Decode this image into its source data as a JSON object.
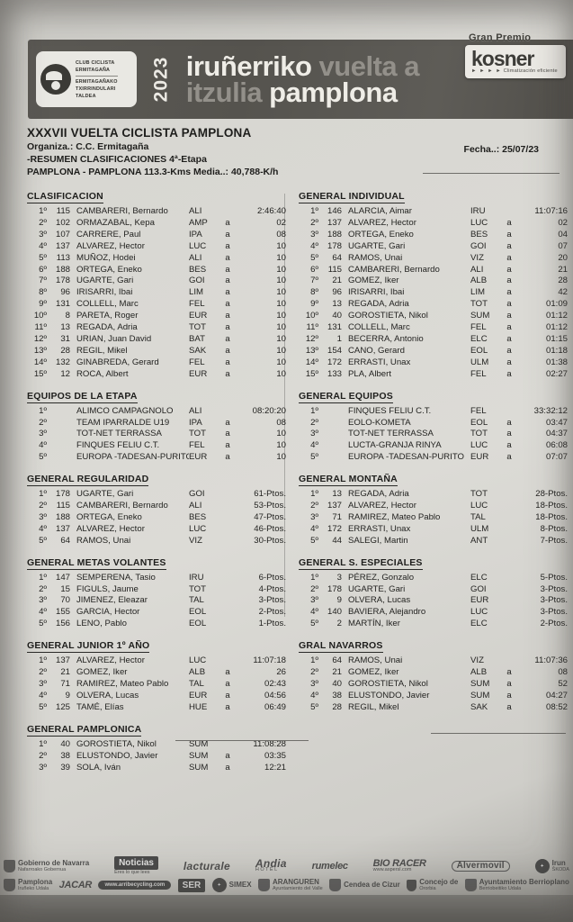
{
  "banner": {
    "club_lines": [
      "CLUB CICLISTA",
      "ERMITAGAÑA",
      "ERMITAGAÑAKO",
      "TXIRRINDULARI",
      "TALDEA"
    ],
    "year": "2023",
    "line1_white": "iruñerriko",
    "line1_gray": " vuelta a",
    "line2_gray": "itzulia",
    "line2_white": " pamplona",
    "gran_premio": "Gran Premio",
    "kosner": "kosner",
    "kosner_arrows": "► ► ► ►",
    "kosner_sub": "Climatización eficiente"
  },
  "title_block": {
    "title": "XXXVII VUELTA CICLISTA PAMPLONA",
    "organiza": "Organiza.: C.C. Ermitagaña",
    "resumen": "-RESUMEN CLASIFICACIONES 4ª-Etapa",
    "route": "PAMPLONA - PAMPLONA  113.3-Kms    Media..: 40,788-K/h",
    "fecha": "Fecha..: 25/07/23"
  },
  "sections": {
    "left": [
      {
        "title": "CLASIFICACION",
        "rows": [
          {
            "pos": "1º",
            "num": "115",
            "name": "CAMBARERI, Bernardo",
            "team": "ALI",
            "gap": "",
            "value": "2:46:40"
          },
          {
            "pos": "2º",
            "num": "102",
            "name": "ORMAZABAL, Kepa",
            "team": "AMP",
            "gap": "a",
            "value": "02"
          },
          {
            "pos": "3º",
            "num": "107",
            "name": "CARRERE, Paul",
            "team": "IPA",
            "gap": "a",
            "value": "08"
          },
          {
            "pos": "4º",
            "num": "137",
            "name": "ALVAREZ, Hector",
            "team": "LUC",
            "gap": "a",
            "value": "10"
          },
          {
            "pos": "5º",
            "num": "113",
            "name": "MUÑOZ, Hodei",
            "team": "ALI",
            "gap": "a",
            "value": "10"
          },
          {
            "pos": "6º",
            "num": "188",
            "name": "ORTEGA, Eneko",
            "team": "BES",
            "gap": "a",
            "value": "10"
          },
          {
            "pos": "7º",
            "num": "178",
            "name": "UGARTE, Gari",
            "team": "GOI",
            "gap": "a",
            "value": "10"
          },
          {
            "pos": "8º",
            "num": "96",
            "name": "IRISARRI, Ibai",
            "team": "LIM",
            "gap": "a",
            "value": "10"
          },
          {
            "pos": "9º",
            "num": "131",
            "name": "COLLELL, Marc",
            "team": "FEL",
            "gap": "a",
            "value": "10"
          },
          {
            "pos": "10º",
            "num": "8",
            "name": "PARETA, Roger",
            "team": "EUR",
            "gap": "a",
            "value": "10"
          },
          {
            "pos": "11º",
            "num": "13",
            "name": "REGADA, Adria",
            "team": "TOT",
            "gap": "a",
            "value": "10"
          },
          {
            "pos": "12º",
            "num": "31",
            "name": "URIAN, Juan David",
            "team": "BAT",
            "gap": "a",
            "value": "10"
          },
          {
            "pos": "13º",
            "num": "28",
            "name": "REGIL, Mikel",
            "team": "SAK",
            "gap": "a",
            "value": "10"
          },
          {
            "pos": "14º",
            "num": "132",
            "name": "GINABREDA, Gerard",
            "team": "FEL",
            "gap": "a",
            "value": "10"
          },
          {
            "pos": "15º",
            "num": "12",
            "name": "ROCA, Albert",
            "team": "EUR",
            "gap": "a",
            "value": "10"
          }
        ]
      },
      {
        "title": "EQUIPOS DE LA ETAPA",
        "rows": [
          {
            "pos": "1º",
            "num": "",
            "name": "ALIMCO CAMPAGNOLO",
            "team": "ALI",
            "gap": "",
            "value": "08:20:20"
          },
          {
            "pos": "2º",
            "num": "",
            "name": "TEAM IPARRALDE U19",
            "team": "IPA",
            "gap": "a",
            "value": "08"
          },
          {
            "pos": "3º",
            "num": "",
            "name": "TOT-NET TERRASSA",
            "team": "TOT",
            "gap": "a",
            "value": "10"
          },
          {
            "pos": "4º",
            "num": "",
            "name": "FINQUES FELIU C.T.",
            "team": "FEL",
            "gap": "a",
            "value": "10"
          },
          {
            "pos": "5º",
            "num": "",
            "name": "EUROPA -TADESAN-PURITO",
            "team": "EUR",
            "gap": "a",
            "value": "10"
          }
        ]
      },
      {
        "title": "GENERAL REGULARIDAD",
        "rows": [
          {
            "pos": "1º",
            "num": "178",
            "name": "UGARTE, Gari",
            "team": "GOI",
            "gap": "",
            "value": "61-Ptos."
          },
          {
            "pos": "2º",
            "num": "115",
            "name": "CAMBARERI, Bernardo",
            "team": "ALI",
            "gap": "",
            "value": "53-Ptos."
          },
          {
            "pos": "3º",
            "num": "188",
            "name": "ORTEGA, Eneko",
            "team": "BES",
            "gap": "",
            "value": "47-Ptos."
          },
          {
            "pos": "4º",
            "num": "137",
            "name": "ALVAREZ, Hector",
            "team": "LUC",
            "gap": "",
            "value": "46-Ptos."
          },
          {
            "pos": "5º",
            "num": "64",
            "name": "RAMOS, Unai",
            "team": "VIZ",
            "gap": "",
            "value": "30-Ptos."
          }
        ]
      },
      {
        "title": "GENERAL METAS VOLANTES",
        "rows": [
          {
            "pos": "1º",
            "num": "147",
            "name": "SEMPERENA, Tasio",
            "team": "IRU",
            "gap": "",
            "value": "6-Ptos."
          },
          {
            "pos": "2º",
            "num": "15",
            "name": "FIGULS, Jaume",
            "team": "TOT",
            "gap": "",
            "value": "4-Ptos."
          },
          {
            "pos": "3º",
            "num": "70",
            "name": "JIMENEZ, Eleazar",
            "team": "TAL",
            "gap": "",
            "value": "3-Ptos."
          },
          {
            "pos": "4º",
            "num": "155",
            "name": "GARCIA, Hector",
            "team": "EOL",
            "gap": "",
            "value": "2-Ptos."
          },
          {
            "pos": "5º",
            "num": "156",
            "name": "LENO, Pablo",
            "team": "EOL",
            "gap": "",
            "value": "1-Ptos."
          }
        ]
      },
      {
        "title": "GENERAL JUNIOR 1º AÑO",
        "rows": [
          {
            "pos": "1º",
            "num": "137",
            "name": "ALVAREZ, Hector",
            "team": "LUC",
            "gap": "",
            "value": "11:07:18"
          },
          {
            "pos": "2º",
            "num": "21",
            "name": "GOMEZ, Iker",
            "team": "ALB",
            "gap": "a",
            "value": "26"
          },
          {
            "pos": "3º",
            "num": "71",
            "name": "RAMIREZ, Mateo Pablo",
            "team": "TAL",
            "gap": "a",
            "value": "02:43"
          },
          {
            "pos": "4º",
            "num": "9",
            "name": "OLVERA, Lucas",
            "team": "EUR",
            "gap": "a",
            "value": "04:56"
          },
          {
            "pos": "5º",
            "num": "125",
            "name": "TAMÉ, Elías",
            "team": "HUE",
            "gap": "a",
            "value": "06:49"
          }
        ]
      },
      {
        "title": "GENERAL PAMPLONICA",
        "rows": [
          {
            "pos": "1º",
            "num": "40",
            "name": "GOROSTIETA, Nikol",
            "team": "SUM",
            "gap": "",
            "value": "11:08:28"
          },
          {
            "pos": "2º",
            "num": "38",
            "name": "ELUSTONDO, Javier",
            "team": "SUM",
            "gap": "a",
            "value": "03:35"
          },
          {
            "pos": "3º",
            "num": "39",
            "name": "SOLA, Iván",
            "team": "SUM",
            "gap": "a",
            "value": "12:21"
          }
        ]
      }
    ],
    "right": [
      {
        "title": "GENERAL INDIVIDUAL",
        "rows": [
          {
            "pos": "1º",
            "num": "146",
            "name": "ALARCIA, Aimar",
            "team": "IRU",
            "gap": "",
            "value": "11:07:16"
          },
          {
            "pos": "2º",
            "num": "137",
            "name": "ALVAREZ, Hector",
            "team": "LUC",
            "gap": "a",
            "value": "02"
          },
          {
            "pos": "3º",
            "num": "188",
            "name": "ORTEGA, Eneko",
            "team": "BES",
            "gap": "a",
            "value": "04"
          },
          {
            "pos": "4º",
            "num": "178",
            "name": "UGARTE, Gari",
            "team": "GOI",
            "gap": "a",
            "value": "07"
          },
          {
            "pos": "5º",
            "num": "64",
            "name": "RAMOS, Unai",
            "team": "VIZ",
            "gap": "a",
            "value": "20"
          },
          {
            "pos": "6º",
            "num": "115",
            "name": "CAMBARERI, Bernardo",
            "team": "ALI",
            "gap": "a",
            "value": "21"
          },
          {
            "pos": "7º",
            "num": "21",
            "name": "GOMEZ, Iker",
            "team": "ALB",
            "gap": "a",
            "value": "28"
          },
          {
            "pos": "8º",
            "num": "96",
            "name": "IRISARRI, Ibai",
            "team": "LIM",
            "gap": "a",
            "value": "42"
          },
          {
            "pos": "9º",
            "num": "13",
            "name": "REGADA, Adria",
            "team": "TOT",
            "gap": "a",
            "value": "01:09"
          },
          {
            "pos": "10º",
            "num": "40",
            "name": "GOROSTIETA, Nikol",
            "team": "SUM",
            "gap": "a",
            "value": "01:12"
          },
          {
            "pos": "11º",
            "num": "131",
            "name": "COLLELL, Marc",
            "team": "FEL",
            "gap": "a",
            "value": "01:12"
          },
          {
            "pos": "12º",
            "num": "1",
            "name": "BECERRA, Antonio",
            "team": "ELC",
            "gap": "a",
            "value": "01:15"
          },
          {
            "pos": "13º",
            "num": "154",
            "name": "CANO, Gerard",
            "team": "EOL",
            "gap": "a",
            "value": "01:18"
          },
          {
            "pos": "14º",
            "num": "172",
            "name": "ERRASTI, Unax",
            "team": "ULM",
            "gap": "a",
            "value": "01:38"
          },
          {
            "pos": "15º",
            "num": "133",
            "name": "PLA, Albert",
            "team": "FEL",
            "gap": "a",
            "value": "02:27"
          }
        ]
      },
      {
        "title": "GENERAL EQUIPOS",
        "rows": [
          {
            "pos": "1º",
            "num": "",
            "name": "FINQUES FELIU C.T.",
            "team": "FEL",
            "gap": "",
            "value": "33:32:12"
          },
          {
            "pos": "2º",
            "num": "",
            "name": "EOLO-KOMETA",
            "team": "EOL",
            "gap": "a",
            "value": "03:47"
          },
          {
            "pos": "3º",
            "num": "",
            "name": "TOT-NET TERRASSA",
            "team": "TOT",
            "gap": "a",
            "value": "04:37"
          },
          {
            "pos": "4º",
            "num": "",
            "name": "LUCTA-GRANJA RINYA",
            "team": "LUC",
            "gap": "a",
            "value": "06:08"
          },
          {
            "pos": "5º",
            "num": "",
            "name": "EUROPA -TADESAN-PURITO",
            "team": "EUR",
            "gap": "a",
            "value": "07:07"
          }
        ]
      },
      {
        "title": "GENERAL MONTAÑA",
        "rows": [
          {
            "pos": "1º",
            "num": "13",
            "name": "REGADA, Adria",
            "team": "TOT",
            "gap": "",
            "value": "28-Ptos."
          },
          {
            "pos": "2º",
            "num": "137",
            "name": "ALVAREZ, Hector",
            "team": "LUC",
            "gap": "",
            "value": "18-Ptos."
          },
          {
            "pos": "3º",
            "num": "71",
            "name": "RAMIREZ, Mateo Pablo",
            "team": "TAL",
            "gap": "",
            "value": "18-Ptos."
          },
          {
            "pos": "4º",
            "num": "172",
            "name": "ERRASTI, Unax",
            "team": "ULM",
            "gap": "",
            "value": "8-Ptos."
          },
          {
            "pos": "5º",
            "num": "44",
            "name": "SALEGI, Martin",
            "team": "ANT",
            "gap": "",
            "value": "7-Ptos."
          }
        ]
      },
      {
        "title": "GENERAL S. ESPECIALES",
        "rows": [
          {
            "pos": "1º",
            "num": "3",
            "name": "PÉREZ, Gonzalo",
            "team": "ELC",
            "gap": "",
            "value": "5-Ptos."
          },
          {
            "pos": "2º",
            "num": "178",
            "name": "UGARTE, Gari",
            "team": "GOI",
            "gap": "",
            "value": "3-Ptos."
          },
          {
            "pos": "3º",
            "num": "9",
            "name": "OLVERA, Lucas",
            "team": "EUR",
            "gap": "",
            "value": "3-Ptos."
          },
          {
            "pos": "4º",
            "num": "140",
            "name": "BAVIERA, Alejandro",
            "team": "LUC",
            "gap": "",
            "value": "3-Ptos."
          },
          {
            "pos": "5º",
            "num": "2",
            "name": "MARTÍN, Iker",
            "team": "ELC",
            "gap": "",
            "value": "2-Ptos."
          }
        ]
      },
      {
        "title": "GRAL NAVARROS",
        "rows": [
          {
            "pos": "1º",
            "num": "64",
            "name": "RAMOS, Unai",
            "team": "VIZ",
            "gap": "",
            "value": "11:07:36"
          },
          {
            "pos": "2º",
            "num": "21",
            "name": "GOMEZ, Iker",
            "team": "ALB",
            "gap": "a",
            "value": "08"
          },
          {
            "pos": "3º",
            "num": "40",
            "name": "GOROSTIETA, Nikol",
            "team": "SUM",
            "gap": "a",
            "value": "52"
          },
          {
            "pos": "4º",
            "num": "38",
            "name": "ELUSTONDO, Javier",
            "team": "SUM",
            "gap": "a",
            "value": "04:27"
          },
          {
            "pos": "5º",
            "num": "28",
            "name": "REGIL, Mikel",
            "team": "SAK",
            "gap": "a",
            "value": "08:52"
          }
        ]
      }
    ]
  },
  "footer": {
    "row1": [
      {
        "variant": "v-crest",
        "icon": "crest",
        "label": "Gobierno de Navarra",
        "sub": "Nafarroako Gobernua"
      },
      {
        "variant": "v-box",
        "label": "Noticias",
        "sub": "Eres lo que lees"
      },
      {
        "variant": "v-script",
        "label": "lacturale",
        "sub": ""
      },
      {
        "variant": "v-script",
        "label": "Andia",
        "sub": "H O T E L"
      },
      {
        "variant": "v-ital",
        "label": "rumelec",
        "sub": ""
      },
      {
        "variant": "v-ital",
        "label": "BIO RACER",
        "sub": "www.aspersl.com"
      },
      {
        "variant": "v-out",
        "label": "Alvermovil",
        "sub": ""
      },
      {
        "variant": "v-crest",
        "icon": "coin",
        "label": "Irun",
        "sub": "ŠKODA"
      }
    ],
    "row2": [
      {
        "variant": "v-crest",
        "icon": "crest",
        "label": "Pamplona",
        "sub": "Iruñeko Udala"
      },
      {
        "variant": "v-ital",
        "label": "JACAR",
        "sub": ""
      },
      {
        "variant": "v-pill",
        "label": "www.arribecycling.com",
        "sub": ""
      },
      {
        "variant": "v-box",
        "label": "SER",
        "sub": ""
      },
      {
        "variant": "v-crest",
        "icon": "coin",
        "label": "SIMEX",
        "sub": ""
      },
      {
        "variant": "v-crest",
        "icon": "crest",
        "label": "ARANGUREN",
        "sub": "Ayuntamiento del Valle"
      },
      {
        "variant": "v-crest",
        "icon": "crest",
        "label": "Cendea de Cizur",
        "sub": ""
      },
      {
        "variant": "v-crest",
        "icon": "shield",
        "label": "Concejo de",
        "sub": "Ororbia"
      },
      {
        "variant": "v-crest",
        "icon": "crest",
        "label": "Ayuntamiento Berrioplano",
        "sub": "Berriobeitiko Udala"
      }
    ]
  }
}
